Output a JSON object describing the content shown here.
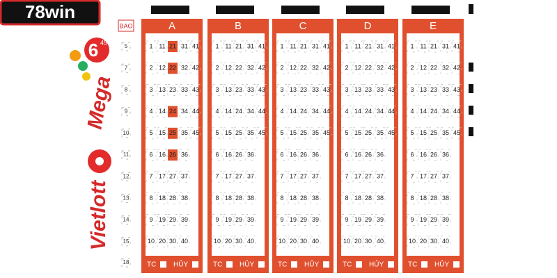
{
  "logo": "78win",
  "brand": {
    "game": "Mega",
    "game_number": "6",
    "game_suffix": "45",
    "operator": "Vietlott"
  },
  "bao": {
    "label": "BAO",
    "options": [
      "5",
      "7",
      "8",
      "9",
      "10",
      "11",
      "12",
      "13",
      "14",
      "15",
      "18"
    ]
  },
  "grid": [
    [
      "1",
      "11",
      "21",
      "31",
      "41"
    ],
    [
      "2",
      "12",
      "22",
      "32",
      "42"
    ],
    [
      "3",
      "13",
      "23",
      "33",
      "43"
    ],
    [
      "4",
      "14",
      "24",
      "34",
      "44"
    ],
    [
      "5",
      "15",
      "25",
      "35",
      "45"
    ],
    [
      "6",
      "16",
      "26",
      "36"
    ],
    [
      "7",
      "17",
      "27",
      "37"
    ],
    [
      "8",
      "18",
      "28",
      "38"
    ],
    [
      "9",
      "19",
      "29",
      "39"
    ],
    [
      "10",
      "20",
      "30",
      "40"
    ]
  ],
  "panels": [
    {
      "label": "A",
      "marked": [
        "21",
        "22",
        "24",
        "25",
        "26"
      ]
    },
    {
      "label": "B",
      "marked": []
    },
    {
      "label": "C",
      "marked": []
    },
    {
      "label": "D",
      "marked": []
    },
    {
      "label": "E",
      "marked": []
    }
  ],
  "footer": {
    "tc": "TC",
    "huy": "HỦY"
  }
}
